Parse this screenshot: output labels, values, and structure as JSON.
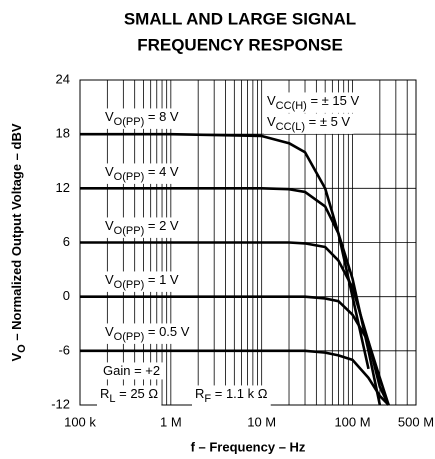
{
  "chart_data": {
    "type": "line",
    "title": [
      "SMALL AND LARGE SIGNAL",
      "FREQUENCY RESPONSE"
    ],
    "x_label": "f – Frequency – Hz",
    "y_label": {
      "main": "V",
      "sub": "O",
      "rest": " – Normalized Output Voltage – dBV"
    },
    "x_log": true,
    "grid": true,
    "color": "#000000",
    "xlim": [
      100000,
      500000000
    ],
    "xticks": [
      {
        "value": 100000,
        "label": "100 k"
      },
      {
        "value": 1000000,
        "label": "1 M"
      },
      {
        "value": 10000000,
        "label": "10 M"
      },
      {
        "value": 100000000,
        "label": "100 M"
      },
      {
        "value": 500000000,
        "label": "500 M"
      }
    ],
    "ylim": [
      -12,
      24
    ],
    "yticks": [
      -12,
      -6,
      0,
      6,
      12,
      18,
      24
    ],
    "series_label": {
      "symbol": "V",
      "subscript": "O(PP)",
      "equals": " = "
    },
    "x": [
      100000,
      1000000,
      10000000,
      20000000,
      30000000,
      50000000,
      70000000,
      100000000,
      150000000,
      200000000,
      250000000
    ],
    "series": [
      {
        "name": "8 V",
        "values": [
          18,
          18,
          17.8,
          17,
          16,
          12,
          7,
          0,
          -8,
          null,
          null
        ]
      },
      {
        "name": "4 V",
        "values": [
          12,
          12,
          12,
          11.9,
          11.6,
          10,
          7,
          2,
          -6,
          -12,
          null
        ]
      },
      {
        "name": "2 V",
        "values": [
          6,
          6,
          6,
          6,
          5.9,
          5.5,
          4,
          1,
          -5,
          -10,
          -12
        ]
      },
      {
        "name": "1 V",
        "values": [
          0,
          0,
          0,
          0,
          0,
          -0.2,
          -0.5,
          -2,
          -5,
          -9,
          -12
        ]
      },
      {
        "name": "0.5 V",
        "values": [
          -6,
          -6,
          -6,
          -6,
          -6,
          -6.2,
          -6.5,
          -7,
          -9,
          -11,
          -12
        ]
      }
    ],
    "annotations": [
      {
        "main": "V",
        "sub": "CC(H)",
        "rest": " = ± 15 V"
      },
      {
        "main": "V",
        "sub": "CC(L)",
        "rest": " = ± 5 V"
      },
      {
        "main": "Gain = +2",
        "sub": "",
        "rest": ""
      },
      {
        "main": "R",
        "sub": "L",
        "rest": " = 25 Ω"
      },
      {
        "main": "R",
        "sub": "F",
        "rest": " = 1.1 k Ω"
      }
    ]
  }
}
